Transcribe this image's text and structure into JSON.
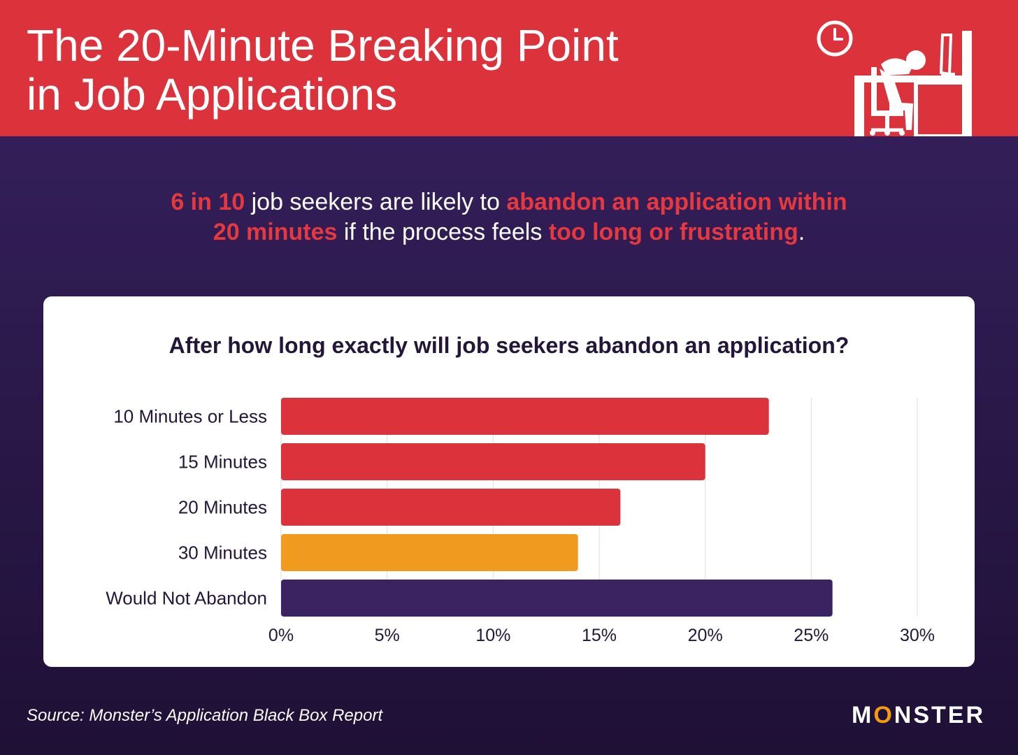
{
  "header": {
    "title_line1": "The 20-Minute Breaking Point",
    "title_line2": "in Job Applications",
    "color": "#dc323c",
    "icons": [
      "clock-icon",
      "exhausted-worker-at-desk-icon"
    ]
  },
  "headline": {
    "part1": "6 in 10",
    "part2": " job seekers are likely to ",
    "part3": "abandon an application within",
    "part4": "20 minutes",
    "part5": " if the process feels ",
    "part6": "too long or frustrating",
    "part7": "."
  },
  "chart_data": {
    "type": "bar",
    "orientation": "horizontal",
    "title": "After how long exactly will job seekers abandon an application?",
    "categories": [
      "10 Minutes or Less",
      "15 Minutes",
      "20 Minutes",
      "30 Minutes",
      "Would Not Abandon"
    ],
    "values": [
      23,
      20,
      16,
      14,
      26
    ],
    "colors": [
      "#dc323c",
      "#dc323c",
      "#dc323c",
      "#f09a20",
      "#3b2260"
    ],
    "xlim": [
      0,
      30
    ],
    "xticks": [
      "0%",
      "5%",
      "10%",
      "15%",
      "20%",
      "25%",
      "30%"
    ],
    "grid": "vertical"
  },
  "footer": {
    "source": "Source:  Monster’s Application Black Box Report",
    "logo_pre": "M",
    "logo_o": "O",
    "logo_post": "NSTER",
    "logo_accent": "#f39c12"
  }
}
